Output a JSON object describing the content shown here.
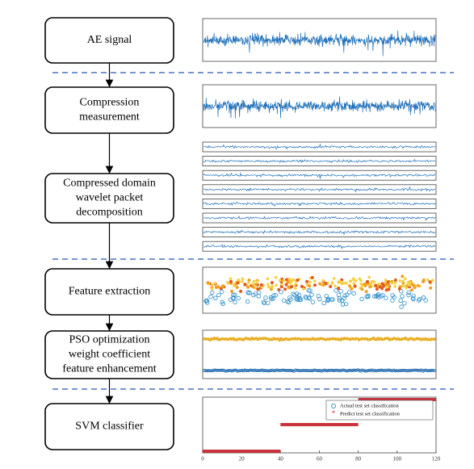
{
  "steps": [
    {
      "lines": [
        "AE signal"
      ]
    },
    {
      "lines": [
        "Compression",
        "measurement"
      ]
    },
    {
      "lines": [
        "Compressed domain",
        "wavelet packet",
        "decomposition"
      ]
    },
    {
      "lines": [
        "Feature extraction"
      ]
    },
    {
      "lines": [
        "PSO optimization",
        "weight coefficient",
        "feature enhancement"
      ]
    },
    {
      "lines": [
        "SVM classifier"
      ]
    }
  ],
  "classifier_plot": {
    "xlim": [
      0,
      120
    ],
    "xticks": [
      0,
      20,
      40,
      60,
      80,
      100,
      120
    ],
    "legend": [
      "Actual test set classification",
      "Predict test set classification"
    ]
  }
}
